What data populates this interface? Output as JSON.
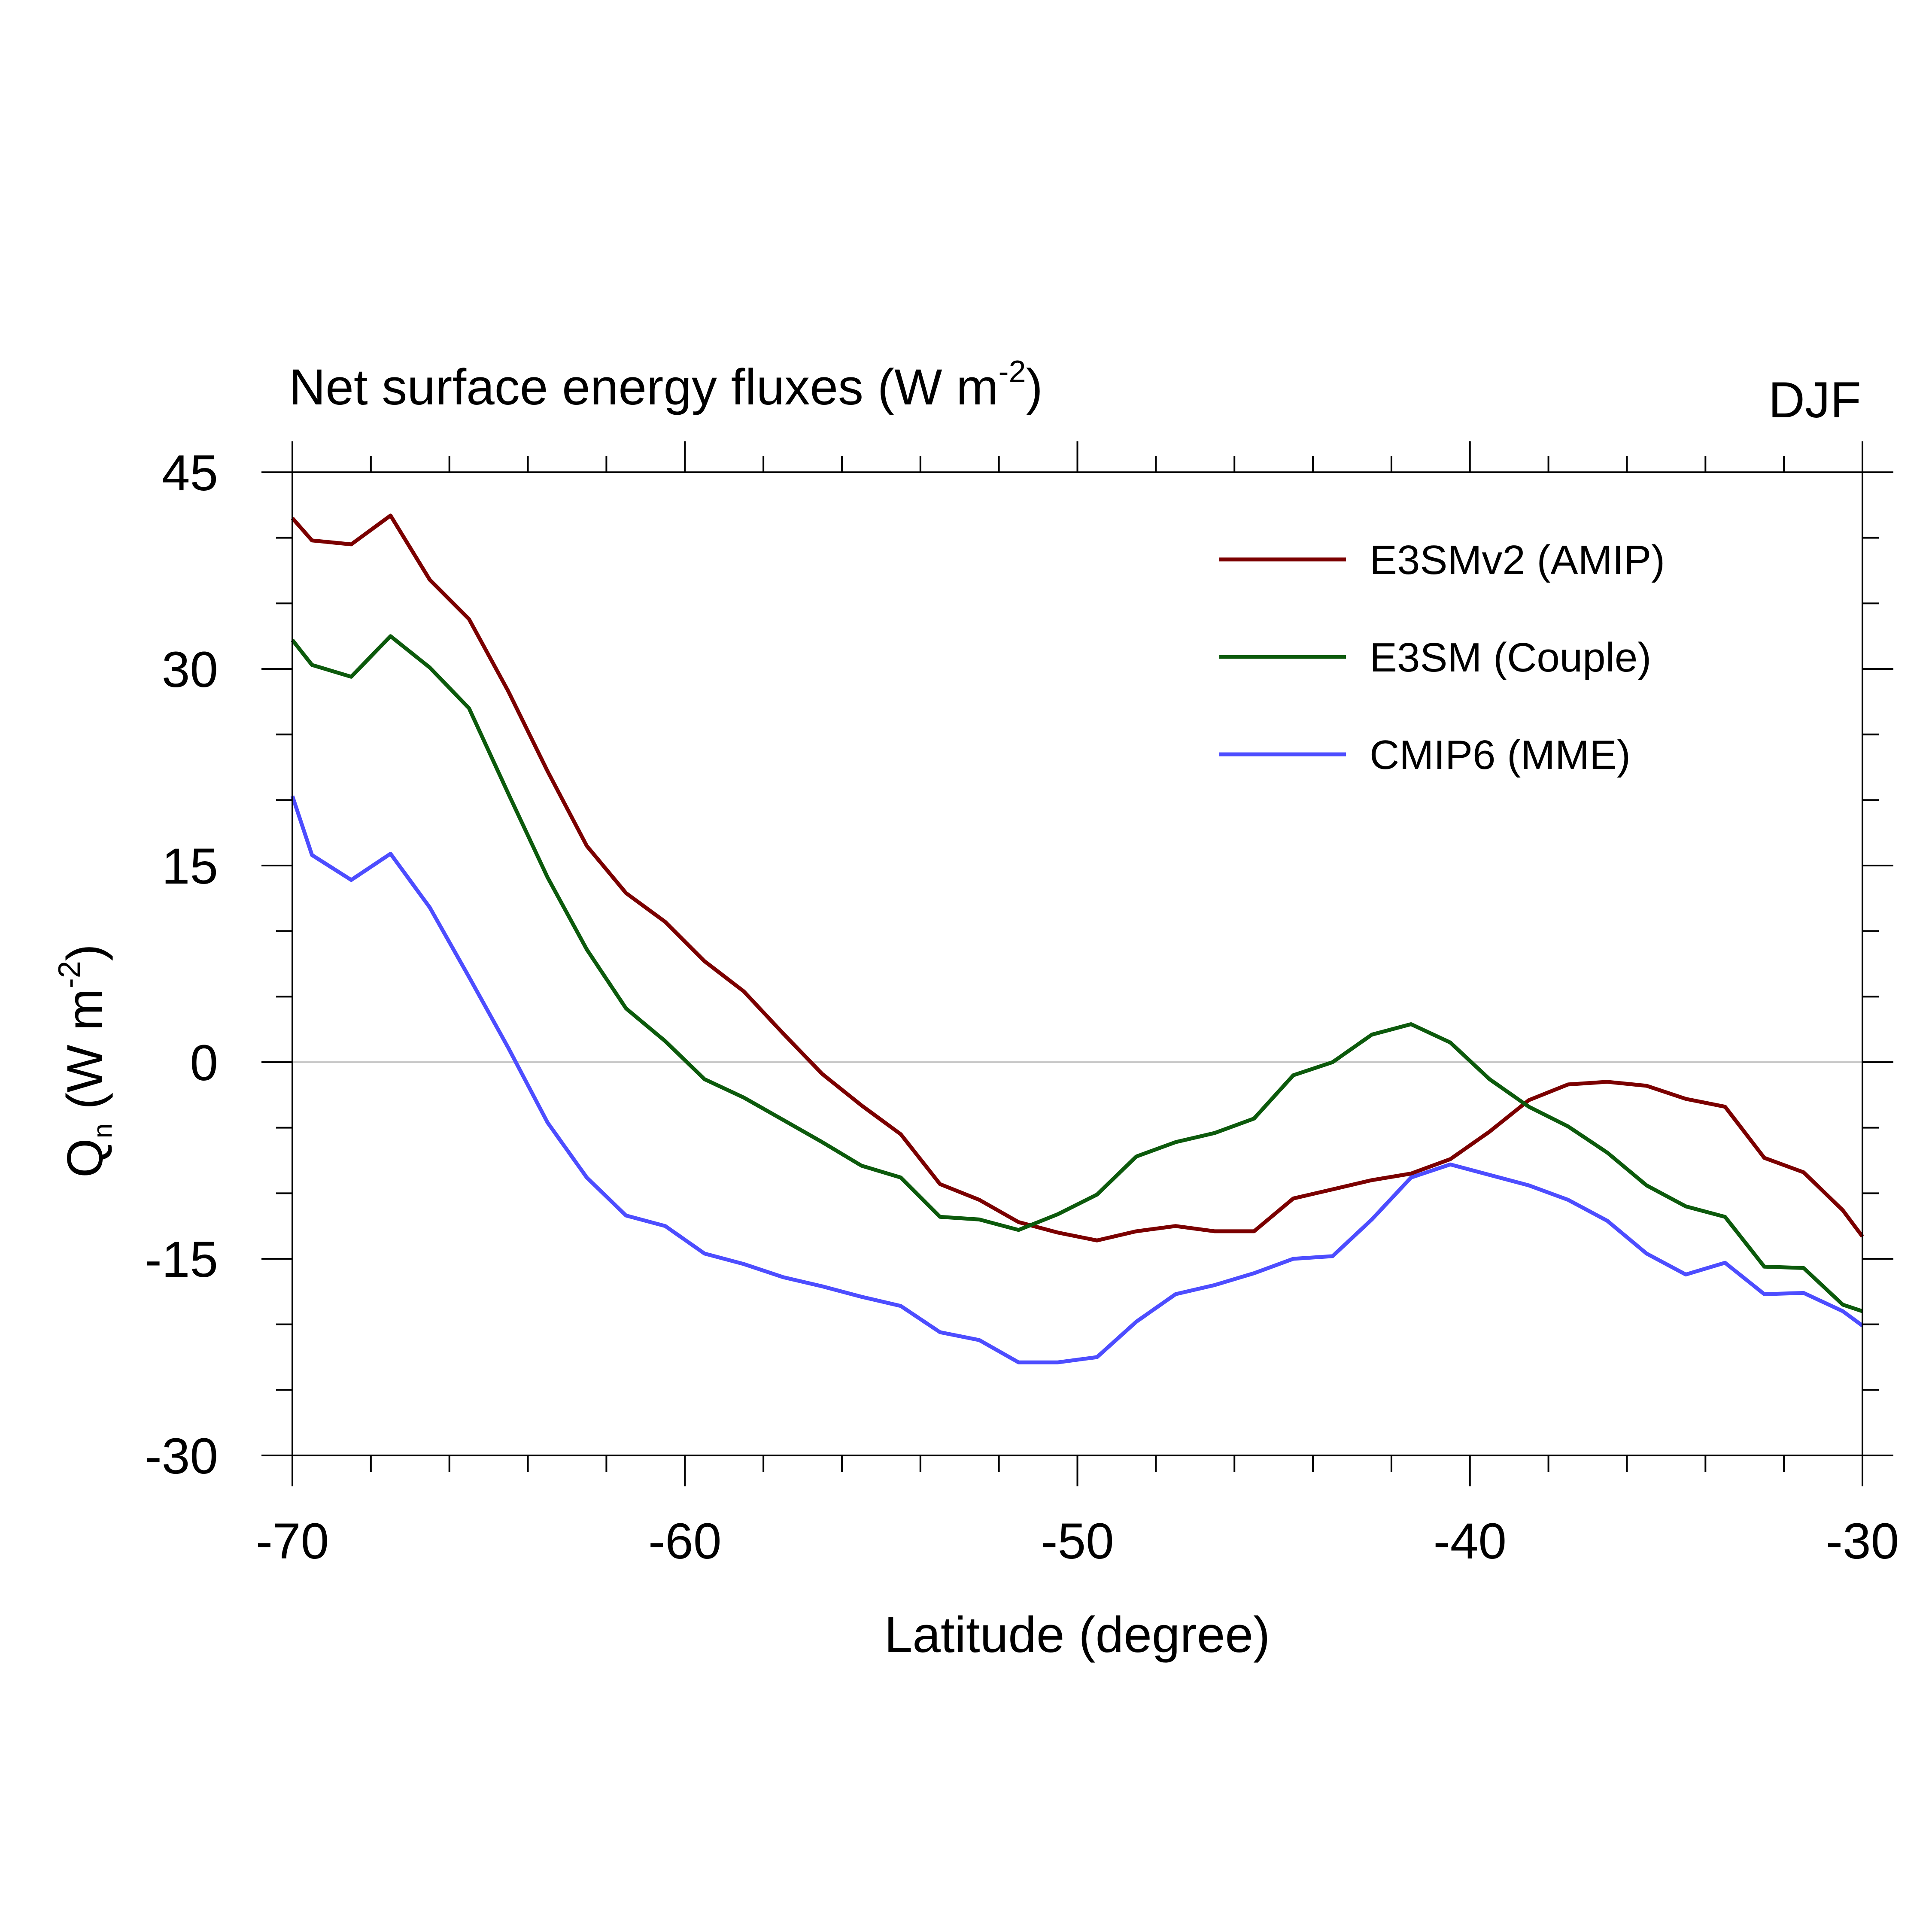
{
  "chart_data": {
    "type": "line",
    "title": "Net surface energy fluxes (W m",
    "title_sup": "-2",
    "title_end": ")",
    "season": "DJF",
    "xlabel": "Latitude (degree)",
    "ylabel": {
      "main": "Q",
      "sub": "n",
      "units": " (W m",
      "sup": "-2",
      "end": ")"
    },
    "xlim": [
      -70,
      -30
    ],
    "ylim": [
      -30,
      45
    ],
    "xticks": [
      -70,
      -60,
      -50,
      -40,
      -30
    ],
    "yticks": [
      45,
      30,
      15,
      0,
      -15,
      -30
    ],
    "x_minor_step": 2,
    "y_minor_step": 5,
    "zero_line": true,
    "legend": {
      "placement": "top-right"
    },
    "x": [
      -70,
      -69.5,
      -68.5,
      -67.5,
      -66.5,
      -65.5,
      -64.5,
      -63.5,
      -62.5,
      -61.5,
      -60.5,
      -59.5,
      -58.5,
      -57.5,
      -56.5,
      -55.5,
      -54.5,
      -53.5,
      -52.5,
      -51.5,
      -50.5,
      -49.5,
      -48.5,
      -47.5,
      -46.5,
      -45.5,
      -44.5,
      -43.5,
      -42.5,
      -41.5,
      -40.5,
      -39.5,
      -38.5,
      -37.5,
      -36.5,
      -35.5,
      -34.5,
      -33.5,
      -32.5,
      -31.5,
      -30.5,
      -30
    ],
    "series": [
      {
        "name": "E3SMv2 (AMIP)",
        "color": "#7b0000",
        "values": [
          41.5,
          39.8,
          39.5,
          41.7,
          36.8,
          33.8,
          28.3,
          22.2,
          16.5,
          12.9,
          10.7,
          7.7,
          5.4,
          2.2,
          -0.9,
          -3.3,
          -5.5,
          -9.3,
          -10.5,
          -12.2,
          -13.0,
          -13.6,
          -12.9,
          -12.5,
          -12.9,
          -12.9,
          -10.4,
          -9.7,
          -9.0,
          -8.5,
          -7.4,
          -5.3,
          -2.9,
          -1.7,
          -1.5,
          -1.8,
          -2.8,
          -3.4,
          -7.3,
          -8.4,
          -11.3,
          -13.3
        ]
      },
      {
        "name": "E3SM (Couple)",
        "color": "#0c5a0c",
        "values": [
          32.2,
          30.3,
          29.4,
          32.5,
          30.1,
          27.0,
          20.5,
          14.1,
          8.6,
          4.1,
          1.6,
          -1.3,
          -2.7,
          -4.4,
          -6.1,
          -7.9,
          -8.8,
          -11.8,
          -12.0,
          -12.8,
          -11.6,
          -10.1,
          -7.2,
          -6.1,
          -5.4,
          -4.3,
          -1.0,
          0.0,
          2.1,
          2.9,
          1.5,
          -1.3,
          -3.4,
          -4.9,
          -6.9,
          -9.4,
          -11.0,
          -11.8,
          -15.6,
          -15.7,
          -18.5,
          -19.0
        ]
      },
      {
        "name": "CMIP6 (MME)",
        "color": "#4d4dff",
        "values": [
          20.3,
          15.8,
          13.9,
          15.9,
          11.8,
          6.5,
          1.1,
          -4.6,
          -8.8,
          -11.7,
          -12.5,
          -14.6,
          -15.4,
          -16.4,
          -17.1,
          -17.9,
          -18.6,
          -20.6,
          -21.2,
          -22.9,
          -22.9,
          -22.5,
          -19.8,
          -17.7,
          -17.0,
          -16.1,
          -15.0,
          -14.8,
          -12.0,
          -8.8,
          -7.8,
          -8.6,
          -9.4,
          -10.5,
          -12.1,
          -14.6,
          -16.2,
          -15.3,
          -17.7,
          -17.6,
          -19.0,
          -20.1
        ]
      }
    ]
  }
}
